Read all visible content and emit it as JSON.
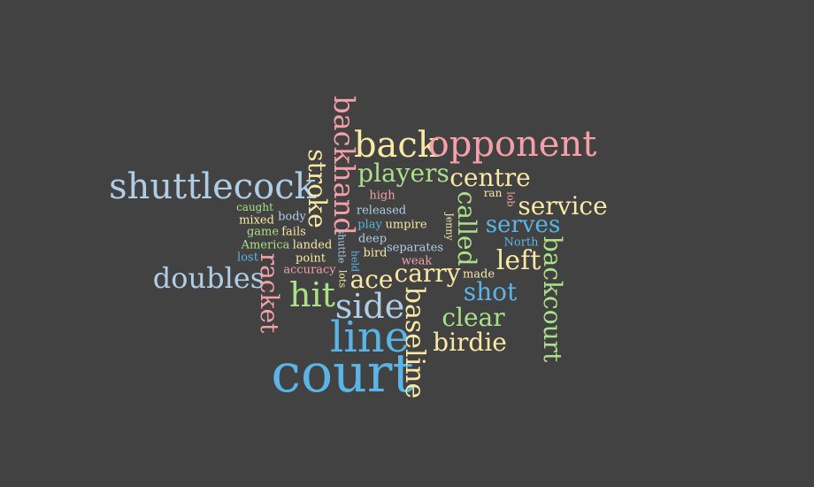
{
  "palette": {
    "blue": "#5ab4e6",
    "lightblue": "#b0cde6",
    "pink": "#f5a0a8",
    "yellow": "#f9e9a4",
    "green": "#a9e088",
    "cream": "#f6e6b0"
  },
  "words": [
    {
      "text": "court",
      "color": "blue"
    },
    {
      "text": "line",
      "color": "blue"
    },
    {
      "text": "shuttlecock",
      "color": "lightblue"
    },
    {
      "text": "back",
      "color": "yellow"
    },
    {
      "text": "opponent",
      "color": "pink"
    },
    {
      "text": "backhand",
      "color": "pink"
    },
    {
      "text": "stroke",
      "color": "yellow"
    },
    {
      "text": "players",
      "color": "green"
    },
    {
      "text": "centre",
      "color": "yellow"
    },
    {
      "text": "service",
      "color": "yellow"
    },
    {
      "text": "serves",
      "color": "blue"
    },
    {
      "text": "called",
      "color": "green"
    },
    {
      "text": "left",
      "color": "yellow"
    },
    {
      "text": "backcourt",
      "color": "green"
    },
    {
      "text": "doubles",
      "color": "lightblue"
    },
    {
      "text": "racket",
      "color": "pink"
    },
    {
      "text": "hit",
      "color": "green"
    },
    {
      "text": "side",
      "color": "lightblue"
    },
    {
      "text": "ace",
      "color": "yellow"
    },
    {
      "text": "carry",
      "color": "yellow"
    },
    {
      "text": "shot",
      "color": "blue"
    },
    {
      "text": "clear",
      "color": "green"
    },
    {
      "text": "birdie",
      "color": "yellow"
    },
    {
      "text": "baseline",
      "color": "yellow"
    },
    {
      "text": "high",
      "color": "pink"
    },
    {
      "text": "released",
      "color": "lightblue"
    },
    {
      "text": "caught",
      "color": "green"
    },
    {
      "text": "body",
      "color": "lightblue"
    },
    {
      "text": "mixed",
      "color": "yellow"
    },
    {
      "text": "game",
      "color": "green"
    },
    {
      "text": "fails",
      "color": "yellow"
    },
    {
      "text": "America",
      "color": "green"
    },
    {
      "text": "landed",
      "color": "yellow"
    },
    {
      "text": "lost",
      "color": "blue"
    },
    {
      "text": "point",
      "color": "yellow"
    },
    {
      "text": "accuracy",
      "color": "pink"
    },
    {
      "text": "play",
      "color": "blue"
    },
    {
      "text": "umpire",
      "color": "yellow"
    },
    {
      "text": "deep",
      "color": "lightblue"
    },
    {
      "text": "bird",
      "color": "yellow"
    },
    {
      "text": "separates",
      "color": "lightblue"
    },
    {
      "text": "weak",
      "color": "pink"
    },
    {
      "text": "made",
      "color": "yellow"
    },
    {
      "text": "ran",
      "color": "yellow"
    },
    {
      "text": "lob",
      "color": "pink"
    },
    {
      "text": "North",
      "color": "blue"
    },
    {
      "text": "Jenny",
      "color": "yellow"
    },
    {
      "text": "shuttle",
      "color": "lightblue"
    },
    {
      "text": "lots",
      "color": "yellow"
    },
    {
      "text": "held",
      "color": "blue"
    }
  ]
}
